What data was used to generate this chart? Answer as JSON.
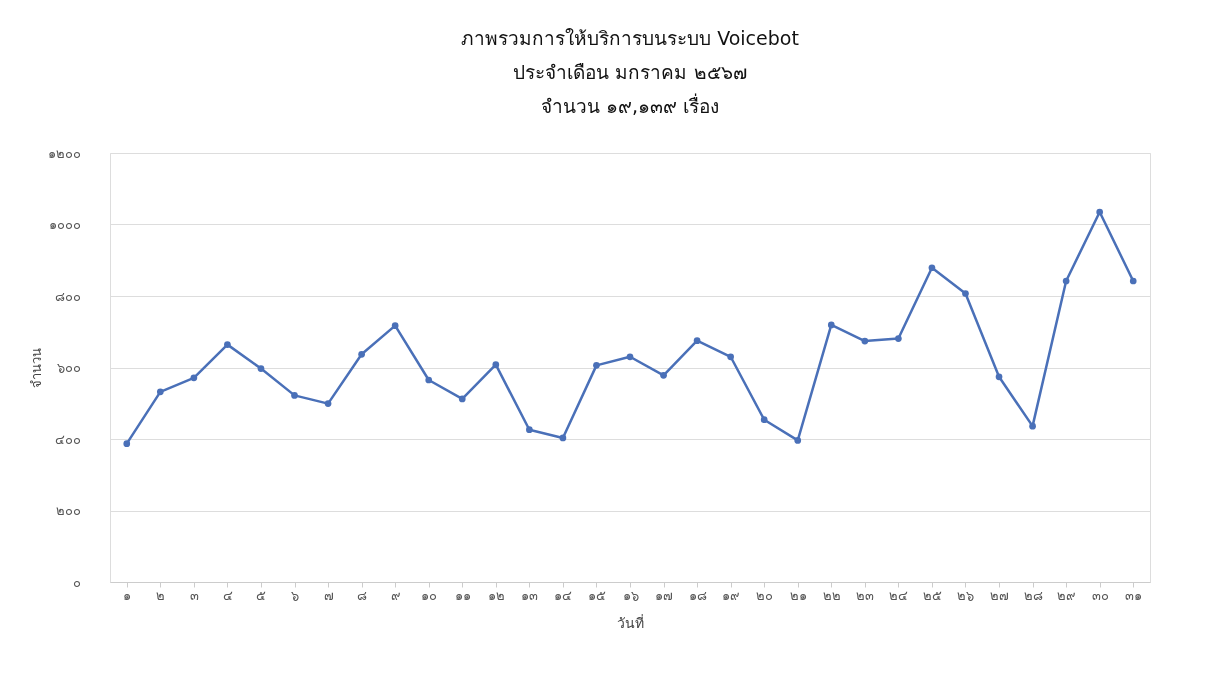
{
  "chart_data": {
    "type": "line",
    "title": "ภาพรวมการให้บริการบนระบบ Voicebot\nประจำเดือน มกราคม ๒๕๖๗\nจำนวน ๑๙,๑๓๙ เรื่อง",
    "xlabel": "วันที่",
    "ylabel": "จำนวน",
    "categories": [
      "๑",
      "๒",
      "๓",
      "๔",
      "๕",
      "๖",
      "๗",
      "๘",
      "๙",
      "๑๐",
      "๑๑",
      "๑๒",
      "๑๓",
      "๑๔",
      "๑๕",
      "๑๖",
      "๑๗",
      "๑๘",
      "๑๙",
      "๒๐",
      "๒๑",
      "๒๒",
      "๒๓",
      "๒๔",
      "๒๕",
      "๒๖",
      "๒๗",
      "๒๘",
      "๒๙",
      "๓๐",
      "๓๑"
    ],
    "series": [
      {
        "color": "#4a70b8",
        "values": [
          387,
          532,
          571,
          664,
          597,
          522,
          499,
          637,
          717,
          565,
          512,
          608,
          426,
          403,
          606,
          630,
          578,
          675,
          630,
          454,
          396,
          719,
          674,
          681,
          879,
          807,
          574,
          436,
          842,
          1035,
          842
        ]
      }
    ],
    "ylim": [
      0,
      1200
    ],
    "yticks": [
      {
        "value": 0,
        "label": "๐"
      },
      {
        "value": 200,
        "label": "๒๐๐"
      },
      {
        "value": 400,
        "label": "๔๐๐"
      },
      {
        "value": 600,
        "label": "๖๐๐"
      },
      {
        "value": 800,
        "label": "๘๐๐"
      },
      {
        "value": 1000,
        "label": "๑๐๐๐"
      },
      {
        "value": 1200,
        "label": "๑๒๐๐"
      }
    ],
    "grid": "y",
    "marker": "circle",
    "line_style": "solid"
  }
}
